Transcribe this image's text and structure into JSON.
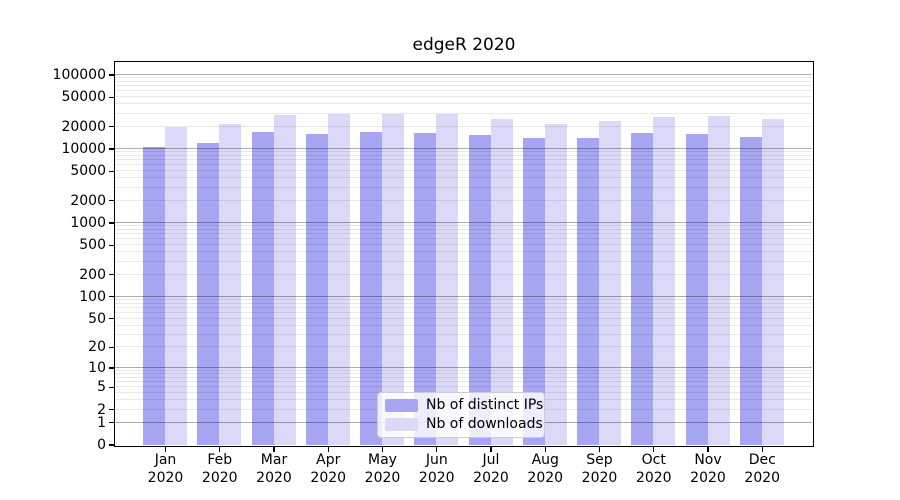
{
  "title": "edgeR 2020",
  "chart_data": {
    "type": "bar",
    "title": "edgeR 2020",
    "categories": [
      "Jan 2020",
      "Feb 2020",
      "Mar 2020",
      "Apr 2020",
      "May 2020",
      "Jun 2020",
      "Jul 2020",
      "Aug 2020",
      "Sep 2020",
      "Oct 2020",
      "Nov 2020",
      "Dec 2020"
    ],
    "series": [
      {
        "name": "Nb of distinct IPs",
        "color": "#a6a6f2",
        "values": [
          10500,
          11800,
          16800,
          15900,
          16600,
          16300,
          15100,
          13700,
          14100,
          16000,
          15700,
          14500
        ]
      },
      {
        "name": "Nb of downloads",
        "color": "#dadaf8",
        "values": [
          19300,
          21800,
          28600,
          29000,
          29700,
          29500,
          25400,
          21800,
          23700,
          27100,
          27400,
          24800
        ]
      }
    ],
    "xlabel": "",
    "ylabel": "",
    "y_scale": "log1p",
    "y_ticks": [
      0,
      1,
      2,
      5,
      10,
      20,
      50,
      100,
      200,
      500,
      1000,
      2000,
      5000,
      10000,
      20000,
      50000,
      100000
    ],
    "ylim": [
      0,
      149000
    ],
    "grid": true,
    "grid_on_top_of_bars": true,
    "legend_position": "lower center",
    "colors": {
      "axis": "#000000",
      "grid_minor": "#e9e9e9",
      "grid_major": "#aeaeae",
      "background": "#ffffff"
    }
  }
}
